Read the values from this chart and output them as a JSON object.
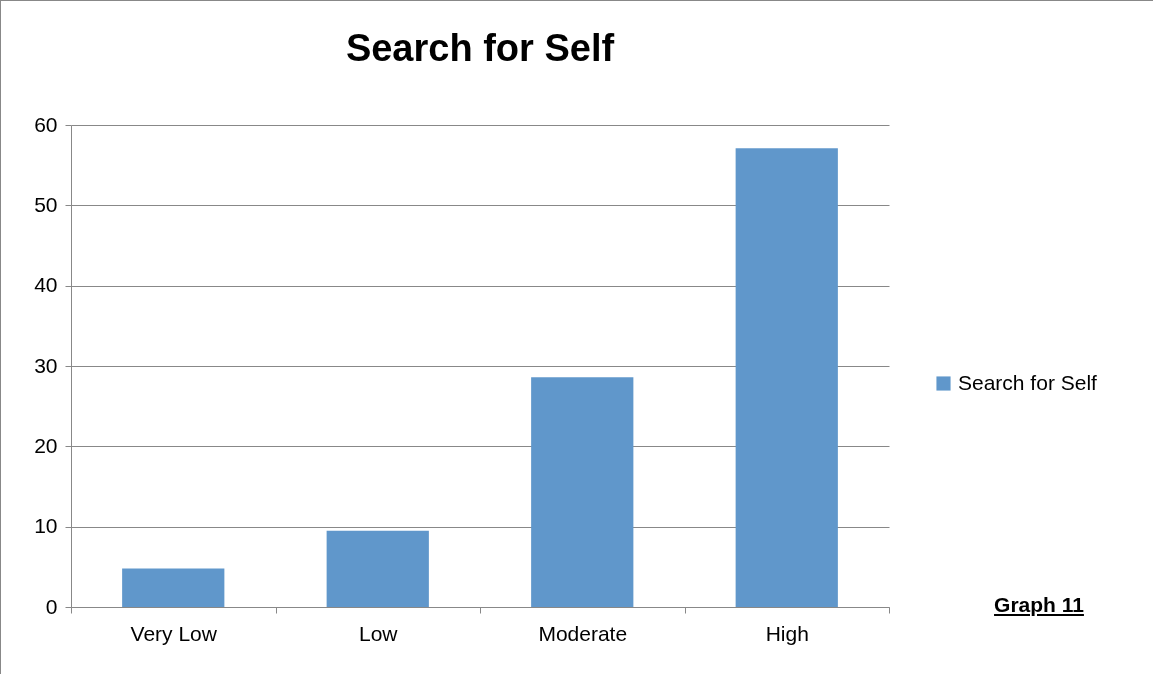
{
  "chart_data": {
    "type": "bar",
    "title": "Search for Self",
    "categories": [
      "Very Low",
      "Low",
      "Moderate",
      "High"
    ],
    "series": [
      {
        "name": "Search for Self",
        "color": "#6097cb",
        "values": [
          4.8,
          9.5,
          28.6,
          57.1
        ]
      }
    ],
    "ylim": [
      0,
      60
    ],
    "yticks": [
      0,
      10,
      20,
      30,
      40,
      50,
      60
    ],
    "grid": "y",
    "legend": "right",
    "annotations": [
      "Graph 11"
    ]
  }
}
